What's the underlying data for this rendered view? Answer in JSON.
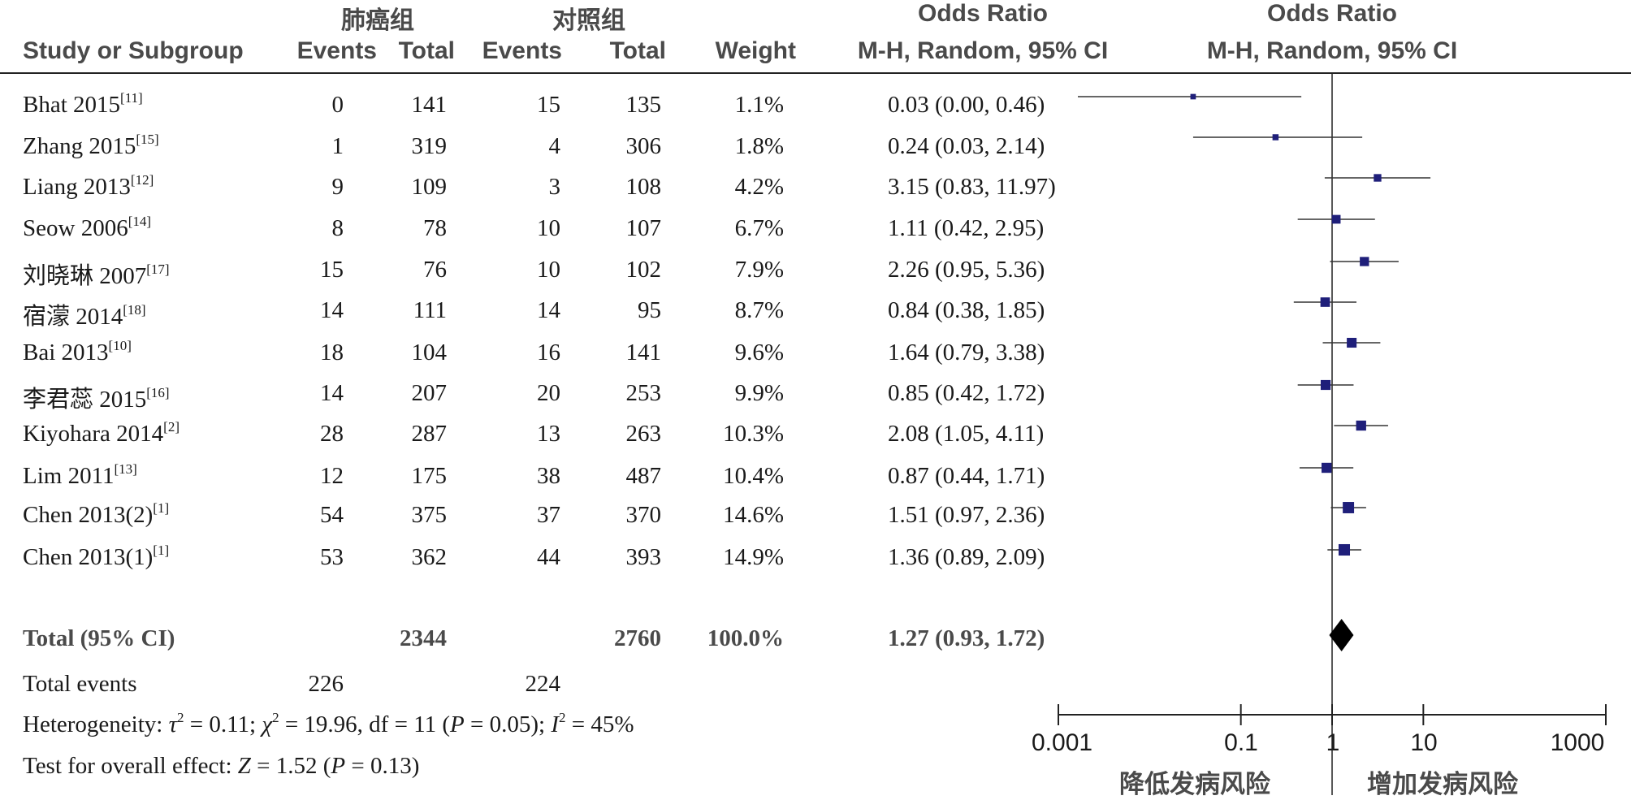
{
  "header": {
    "group_case": "肺癌组",
    "group_control": "对照组",
    "or_title_left": "Odds Ratio",
    "or_title_right": "Odds Ratio",
    "col_study": "Study or Subgroup",
    "col_case_events": "Events",
    "col_case_total": "Total",
    "col_ctrl_events": "Events",
    "col_ctrl_total": "Total",
    "col_weight": "Weight",
    "col_or_method_left": "M-H, Random, 95% CI",
    "col_or_method_right": "M-H, Random, 95% CI"
  },
  "studies": [
    {
      "name": "Bhat 2015",
      "ref": "[11]",
      "case_events": "0",
      "case_total": "141",
      "ctrl_events": "15",
      "ctrl_total": "135",
      "weight": "1.1%",
      "ci_text": "0.03 (0.00, 0.46)"
    },
    {
      "name": "Zhang 2015",
      "ref": "[15]",
      "case_events": "1",
      "case_total": "319",
      "ctrl_events": "4",
      "ctrl_total": "306",
      "weight": "1.8%",
      "ci_text": "0.24 (0.03, 2.14)"
    },
    {
      "name": "Liang 2013",
      "ref": "[12]",
      "case_events": "9",
      "case_total": "109",
      "ctrl_events": "3",
      "ctrl_total": "108",
      "weight": "4.2%",
      "ci_text": "3.15 (0.83, 11.97)"
    },
    {
      "name": "Seow 2006",
      "ref": "[14]",
      "case_events": "8",
      "case_total": "78",
      "ctrl_events": "10",
      "ctrl_total": "107",
      "weight": "6.7%",
      "ci_text": "1.11 (0.42, 2.95)"
    },
    {
      "name": "刘晓琳 2007",
      "ref": "[17]",
      "case_events": "15",
      "case_total": "76",
      "ctrl_events": "10",
      "ctrl_total": "102",
      "weight": "7.9%",
      "ci_text": "2.26 (0.95, 5.36)"
    },
    {
      "name": "宿濛 2014",
      "ref": "[18]",
      "case_events": "14",
      "case_total": "111",
      "ctrl_events": "14",
      "ctrl_total": "95",
      "weight": "8.7%",
      "ci_text": "0.84 (0.38, 1.85)"
    },
    {
      "name": "Bai 2013",
      "ref": "[10]",
      "case_events": "18",
      "case_total": "104",
      "ctrl_events": "16",
      "ctrl_total": "141",
      "weight": "9.6%",
      "ci_text": "1.64 (0.79, 3.38)"
    },
    {
      "name": "李君蕊 2015",
      "ref": "[16]",
      "case_events": "14",
      "case_total": "207",
      "ctrl_events": "20",
      "ctrl_total": "253",
      "weight": "9.9%",
      "ci_text": "0.85 (0.42, 1.72)"
    },
    {
      "name": "Kiyohara 2014",
      "ref": "[2]",
      "case_events": "28",
      "case_total": "287",
      "ctrl_events": "13",
      "ctrl_total": "263",
      "weight": "10.3%",
      "ci_text": "2.08 (1.05, 4.11)"
    },
    {
      "name": "Lim 2011",
      "ref": "[13]",
      "case_events": "12",
      "case_total": "175",
      "ctrl_events": "38",
      "ctrl_total": "487",
      "weight": "10.4%",
      "ci_text": "0.87 (0.44, 1.71)"
    },
    {
      "name": "Chen 2013(2)",
      "ref": "[1]",
      "case_events": "54",
      "case_total": "375",
      "ctrl_events": "37",
      "ctrl_total": "370",
      "weight": "14.6%",
      "ci_text": "1.51 (0.97, 2.36)"
    },
    {
      "name": "Chen 2013(1)",
      "ref": "[1]",
      "case_events": "53",
      "case_total": "362",
      "ctrl_events": "44",
      "ctrl_total": "393",
      "weight": "14.9%",
      "ci_text": "1.36 (0.89, 2.09)"
    }
  ],
  "total": {
    "label": "Total (95% CI)",
    "case_total": "2344",
    "ctrl_total": "2760",
    "weight": "100.0%",
    "ci_text": "1.27 (0.93, 1.72)"
  },
  "total_events": {
    "label": "Total events",
    "case": "226",
    "ctrl": "224"
  },
  "heterogeneity": {
    "prefix": "Heterogeneity: ",
    "tau": "τ",
    "tau_val": " = 0.11; ",
    "chi": "χ",
    "chi_val": " = 19.96, df = 11 (",
    "p": "P",
    "p_val": " = 0.05); ",
    "i": "I",
    "i_val": " = 45%",
    "sq": "2"
  },
  "overall": {
    "prefix": "Test for overall effect: ",
    "z": "Z",
    "z_val": " = 1.52 (",
    "p": "P",
    "p_val": " = 0.13)"
  },
  "axis": {
    "ticks": [
      "0.001",
      "0.1",
      "1",
      "10",
      "1000"
    ],
    "left_label": "降低发病风险",
    "right_label": "增加发病风险"
  },
  "chart_data": {
    "type": "forest",
    "x_scale": "log",
    "xlim": [
      0.001,
      1000
    ],
    "reference_line": 1,
    "x_ticks": [
      0.001,
      0.1,
      1,
      10,
      1000
    ],
    "studies": [
      {
        "name": "Bhat 2015",
        "or": 0.03,
        "lo": 0.0,
        "hi": 0.46,
        "weight": 1.1
      },
      {
        "name": "Zhang 2015",
        "or": 0.24,
        "lo": 0.03,
        "hi": 2.14,
        "weight": 1.8
      },
      {
        "name": "Liang 2013",
        "or": 3.15,
        "lo": 0.83,
        "hi": 11.97,
        "weight": 4.2
      },
      {
        "name": "Seow 2006",
        "or": 1.11,
        "lo": 0.42,
        "hi": 2.95,
        "weight": 6.7
      },
      {
        "name": "刘晓琳 2007",
        "or": 2.26,
        "lo": 0.95,
        "hi": 5.36,
        "weight": 7.9
      },
      {
        "name": "宿濛 2014",
        "or": 0.84,
        "lo": 0.38,
        "hi": 1.85,
        "weight": 8.7
      },
      {
        "name": "Bai 2013",
        "or": 1.64,
        "lo": 0.79,
        "hi": 3.38,
        "weight": 9.6
      },
      {
        "name": "李君蕊 2015",
        "or": 0.85,
        "lo": 0.42,
        "hi": 1.72,
        "weight": 9.9
      },
      {
        "name": "Kiyohara 2014",
        "or": 2.08,
        "lo": 1.05,
        "hi": 4.11,
        "weight": 10.3
      },
      {
        "name": "Lim 2011",
        "or": 0.87,
        "lo": 0.44,
        "hi": 1.71,
        "weight": 10.4
      },
      {
        "name": "Chen 2013(2)",
        "or": 1.51,
        "lo": 0.97,
        "hi": 2.36,
        "weight": 14.6
      },
      {
        "name": "Chen 2013(1)",
        "or": 1.36,
        "lo": 0.89,
        "hi": 2.09,
        "weight": 14.9
      }
    ],
    "pooled": {
      "or": 1.27,
      "lo": 0.93,
      "hi": 1.72,
      "weight": 100.0
    },
    "colors": {
      "marker": "#1f1f7a",
      "line": "#333333",
      "diamond": "#000000"
    }
  }
}
